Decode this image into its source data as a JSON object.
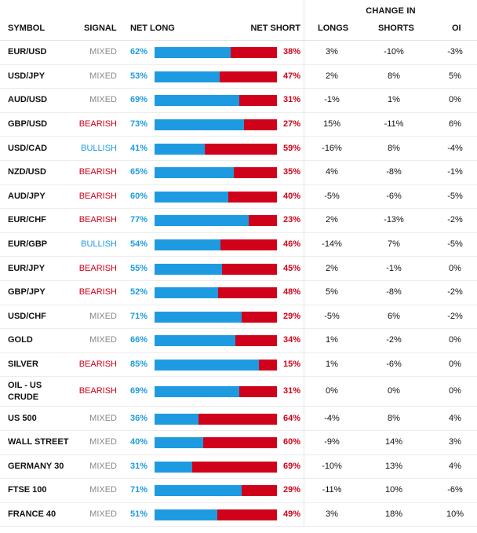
{
  "header": {
    "change_in": "CHANGE IN",
    "symbol": "SYMBOL",
    "signal": "SIGNAL",
    "net_long": "NET LONG",
    "net_short": "NET SHORT",
    "longs": "LONGS",
    "shorts": "SHORTS",
    "oi": "OI"
  },
  "colors": {
    "long": "#1e9be0",
    "short": "#d0021b",
    "mixed": "#8a8a8a"
  },
  "rows": [
    {
      "symbol": "EUR/USD",
      "signal": "MIXED",
      "net_long": "62%",
      "net_short": "38%",
      "longs": "3%",
      "shorts": "-10%",
      "oi": "-3%"
    },
    {
      "symbol": "USD/JPY",
      "signal": "MIXED",
      "net_long": "53%",
      "net_short": "47%",
      "longs": "2%",
      "shorts": "8%",
      "oi": "5%"
    },
    {
      "symbol": "AUD/USD",
      "signal": "MIXED",
      "net_long": "69%",
      "net_short": "31%",
      "longs": "-1%",
      "shorts": "1%",
      "oi": "0%"
    },
    {
      "symbol": "GBP/USD",
      "signal": "BEARISH",
      "net_long": "73%",
      "net_short": "27%",
      "longs": "15%",
      "shorts": "-11%",
      "oi": "6%"
    },
    {
      "symbol": "USD/CAD",
      "signal": "BULLISH",
      "net_long": "41%",
      "net_short": "59%",
      "longs": "-16%",
      "shorts": "8%",
      "oi": "-4%"
    },
    {
      "symbol": "NZD/USD",
      "signal": "BEARISH",
      "net_long": "65%",
      "net_short": "35%",
      "longs": "4%",
      "shorts": "-8%",
      "oi": "-1%"
    },
    {
      "symbol": "AUD/JPY",
      "signal": "BEARISH",
      "net_long": "60%",
      "net_short": "40%",
      "longs": "-5%",
      "shorts": "-6%",
      "oi": "-5%"
    },
    {
      "symbol": "EUR/CHF",
      "signal": "BEARISH",
      "net_long": "77%",
      "net_short": "23%",
      "longs": "2%",
      "shorts": "-13%",
      "oi": "-2%"
    },
    {
      "symbol": "EUR/GBP",
      "signal": "BULLISH",
      "net_long": "54%",
      "net_short": "46%",
      "longs": "-14%",
      "shorts": "7%",
      "oi": "-5%"
    },
    {
      "symbol": "EUR/JPY",
      "signal": "BEARISH",
      "net_long": "55%",
      "net_short": "45%",
      "longs": "2%",
      "shorts": "-1%",
      "oi": "0%"
    },
    {
      "symbol": "GBP/JPY",
      "signal": "BEARISH",
      "net_long": "52%",
      "net_short": "48%",
      "longs": "5%",
      "shorts": "-8%",
      "oi": "-2%"
    },
    {
      "symbol": "USD/CHF",
      "signal": "MIXED",
      "net_long": "71%",
      "net_short": "29%",
      "longs": "-5%",
      "shorts": "6%",
      "oi": "-2%"
    },
    {
      "symbol": "GOLD",
      "signal": "MIXED",
      "net_long": "66%",
      "net_short": "34%",
      "longs": "1%",
      "shorts": "-2%",
      "oi": "0%"
    },
    {
      "symbol": "SILVER",
      "signal": "BEARISH",
      "net_long": "85%",
      "net_short": "15%",
      "longs": "1%",
      "shorts": "-6%",
      "oi": "0%"
    },
    {
      "symbol": "OIL - US CRUDE",
      "signal": "BEARISH",
      "net_long": "69%",
      "net_short": "31%",
      "longs": "0%",
      "shorts": "0%",
      "oi": "0%"
    },
    {
      "symbol": "US 500",
      "signal": "MIXED",
      "net_long": "36%",
      "net_short": "64%",
      "longs": "-4%",
      "shorts": "8%",
      "oi": "4%"
    },
    {
      "symbol": "WALL STREET",
      "signal": "MIXED",
      "net_long": "40%",
      "net_short": "60%",
      "longs": "-9%",
      "shorts": "14%",
      "oi": "3%"
    },
    {
      "symbol": "GERMANY 30",
      "signal": "MIXED",
      "net_long": "31%",
      "net_short": "69%",
      "longs": "-10%",
      "shorts": "13%",
      "oi": "4%"
    },
    {
      "symbol": "FTSE 100",
      "signal": "MIXED",
      "net_long": "71%",
      "net_short": "29%",
      "longs": "-11%",
      "shorts": "10%",
      "oi": "-6%"
    },
    {
      "symbol": "FRANCE 40",
      "signal": "MIXED",
      "net_long": "51%",
      "net_short": "49%",
      "longs": "3%",
      "shorts": "18%",
      "oi": "10%"
    }
  ]
}
